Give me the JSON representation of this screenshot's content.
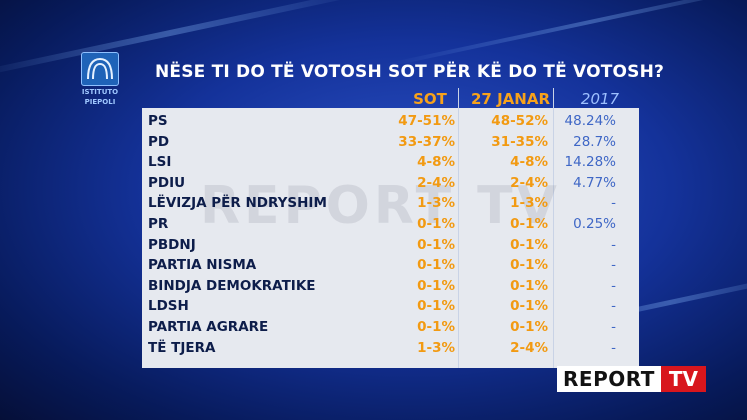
{
  "title": "NËSE TI DO TË VOTOSH SOT PËR KË DO TË VOTOSH?",
  "logo": {
    "line1": "ISTITUTO",
    "line2": "PIEPOLI"
  },
  "brand": {
    "part1": "REPORT",
    "part2": "TV"
  },
  "colors": {
    "accent": "#f29a12",
    "year2017": "#3f67c6",
    "panel": "#e6e9ef",
    "brandRed": "#d8161d"
  },
  "chart_data": {
    "type": "table",
    "title": "NËSE TI DO TË VOTOSH SOT PËR KË DO TË VOTOSH?",
    "columns": [
      "SOT",
      "27 JANAR",
      "2017"
    ],
    "rows": [
      {
        "party": "PS",
        "sot": "47-51%",
        "jan": "48-52%",
        "y2017": "48.24%"
      },
      {
        "party": "PD",
        "sot": "33-37%",
        "jan": "31-35%",
        "y2017": "28.7%"
      },
      {
        "party": "LSI",
        "sot": "4-8%",
        "jan": "4-8%",
        "y2017": "14.28%"
      },
      {
        "party": "PDIU",
        "sot": "2-4%",
        "jan": "2-4%",
        "y2017": "4.77%"
      },
      {
        "party": "LËVIZJA PËR NDRYSHIM",
        "sot": "1-3%",
        "jan": "1-3%",
        "y2017": "-"
      },
      {
        "party": "PR",
        "sot": "0-1%",
        "jan": "0-1%",
        "y2017": "0.25%"
      },
      {
        "party": "PBDNJ",
        "sot": "0-1%",
        "jan": "0-1%",
        "y2017": "-"
      },
      {
        "party": "PARTIA NISMA",
        "sot": "0-1%",
        "jan": "0-1%",
        "y2017": "-"
      },
      {
        "party": "BINDJA DEMOKRATIKE",
        "sot": "0-1%",
        "jan": "0-1%",
        "y2017": "-"
      },
      {
        "party": "LDSH",
        "sot": "0-1%",
        "jan": "0-1%",
        "y2017": "-"
      },
      {
        "party": "PARTIA AGRARE",
        "sot": "0-1%",
        "jan": "0-1%",
        "y2017": "-"
      },
      {
        "party": "TË TJERA",
        "sot": "1-3%",
        "jan": "2-4%",
        "y2017": "-"
      }
    ]
  }
}
